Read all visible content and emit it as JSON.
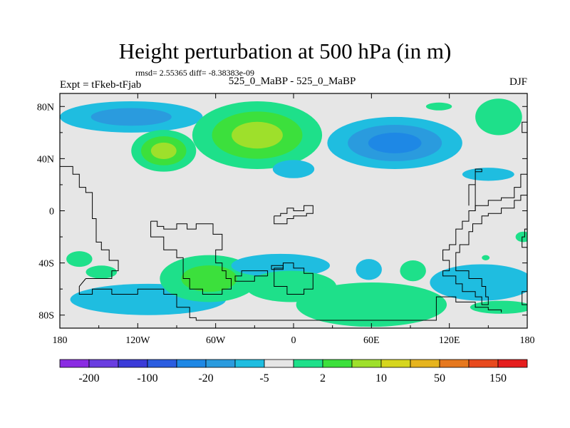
{
  "header": {
    "title": "Height perturbation at 500 hPa (in m)",
    "stats": "rmsd= 2.55365 diff= -8.38383e-09",
    "expt": "Expt = tFkeb-tFjab",
    "center_label": "525_0_MaBP - 525_0_MaBP",
    "season": "DJF"
  },
  "colors": {
    "land_fill": "#e6e6e6",
    "frame": "#000000",
    "coastline": "#000000",
    "contour_palette": [
      "#8a2be2",
      "#6a3de0",
      "#3b3bd8",
      "#2b5de0",
      "#1e88e5",
      "#2a9bde",
      "#1fbde0",
      "#e6e6e6",
      "#1ee08a",
      "#3ce03c",
      "#9ee02b",
      "#d6d61e",
      "#e6b41e",
      "#e6781e",
      "#e84a1e",
      "#e61e1e"
    ]
  },
  "chart_data": {
    "type": "heatmap",
    "title": "Height perturbation at 500 hPa (in m)",
    "projection": "cylindrical equidistant",
    "xlim": [
      -180,
      180
    ],
    "ylim": [
      -90,
      90
    ],
    "x_ticks": [
      -180,
      -120,
      -60,
      0,
      60,
      120,
      180
    ],
    "x_tick_labels": [
      "180",
      "120W",
      "60W",
      "0",
      "60E",
      "120E",
      "180"
    ],
    "y_ticks": [
      80,
      40,
      0,
      -40,
      -80
    ],
    "y_tick_labels": [
      "80N",
      "40N",
      "0",
      "40S",
      "80S"
    ],
    "colorbar": {
      "levels": [
        "-200",
        "",
        "-100",
        "",
        "-20",
        "",
        "-5",
        "",
        "2",
        "",
        "10",
        "",
        "50",
        "",
        "150",
        ""
      ],
      "colors": [
        "#8a2be2",
        "#6a3de0",
        "#3b3bd8",
        "#2b5de0",
        "#1e88e5",
        "#2a9bde",
        "#1fbde0",
        "#e6e6e6",
        "#1ee08a",
        "#3ce03c",
        "#9ee02b",
        "#d6d61e",
        "#e6b41e",
        "#e6781e",
        "#e84a1e",
        "#e61e1e"
      ]
    },
    "anomalies": [
      {
        "lon": -125,
        "lat": 72,
        "rlon": 55,
        "rlat": 12,
        "colors": [
          "#1fbde0",
          "#2a9bde"
        ]
      },
      {
        "lon": -100,
        "lat": 46,
        "rlon": 25,
        "rlat": 16,
        "colors": [
          "#1ee08a",
          "#3ce03c",
          "#9ee02b"
        ]
      },
      {
        "lon": -28,
        "lat": 58,
        "rlon": 50,
        "rlat": 26,
        "colors": [
          "#1ee08a",
          "#3ce03c",
          "#9ee02b"
        ]
      },
      {
        "lon": 0,
        "lat": 32,
        "rlon": 16,
        "rlat": 7,
        "colors": [
          "#1fbde0"
        ]
      },
      {
        "lon": 78,
        "lat": 52,
        "rlon": 52,
        "rlat": 20,
        "colors": [
          "#1fbde0",
          "#2a9bde",
          "#1e88e5"
        ]
      },
      {
        "lon": 150,
        "lat": 28,
        "rlon": 20,
        "rlat": 5,
        "colors": [
          "#1fbde0"
        ]
      },
      {
        "lon": 158,
        "lat": 72,
        "rlon": 18,
        "rlat": 14,
        "colors": [
          "#1ee08a"
        ]
      },
      {
        "lon": 112,
        "lat": 80,
        "rlon": 10,
        "rlat": 3,
        "colors": [
          "#1ee08a"
        ]
      },
      {
        "lon": -165,
        "lat": -37,
        "rlon": 10,
        "rlat": 6,
        "colors": [
          "#1ee08a"
        ]
      },
      {
        "lon": -148,
        "lat": -47,
        "rlon": 12,
        "rlat": 5,
        "colors": [
          "#1ee08a"
        ]
      },
      {
        "lon": -112,
        "lat": -68,
        "rlon": 60,
        "rlat": 12,
        "colors": [
          "#1fbde0"
        ]
      },
      {
        "lon": -65,
        "lat": -52,
        "rlon": 38,
        "rlat": 18,
        "colors": [
          "#1ee08a",
          "#3ce03c"
        ]
      },
      {
        "lon": -10,
        "lat": -42,
        "rlon": 38,
        "rlat": 9,
        "colors": [
          "#1fbde0"
        ]
      },
      {
        "lon": -2,
        "lat": -58,
        "rlon": 35,
        "rlat": 12,
        "colors": [
          "#1ee08a"
        ]
      },
      {
        "lon": 60,
        "lat": -72,
        "rlon": 58,
        "rlat": 17,
        "colors": [
          "#1ee08a"
        ]
      },
      {
        "lon": 58,
        "lat": -45,
        "rlon": 10,
        "rlat": 8,
        "colors": [
          "#1fbde0"
        ]
      },
      {
        "lon": 92,
        "lat": -46,
        "rlon": 10,
        "rlat": 8,
        "colors": [
          "#1ee08a"
        ]
      },
      {
        "lon": 145,
        "lat": -55,
        "rlon": 40,
        "rlat": 14,
        "colors": [
          "#1fbde0"
        ]
      },
      {
        "lon": 160,
        "lat": -74,
        "rlon": 24,
        "rlat": 5,
        "colors": [
          "#1ee08a"
        ]
      },
      {
        "lon": 177,
        "lat": -20,
        "rlon": 6,
        "rlat": 4,
        "colors": [
          "#1ee08a"
        ]
      },
      {
        "lon": 148,
        "lat": -36,
        "rlon": 3,
        "rlat": 2,
        "colors": [
          "#1ee08a"
        ]
      }
    ],
    "coastlines": [
      [
        [
          -180,
          34
        ],
        [
          -170,
          34
        ],
        [
          -170,
          28
        ],
        [
          -165,
          28
        ],
        [
          -165,
          18
        ],
        [
          -160,
          18
        ],
        [
          -160,
          14
        ],
        [
          -155,
          14
        ],
        [
          -155,
          -6
        ],
        [
          -152,
          -6
        ],
        [
          -152,
          -24
        ],
        [
          -148,
          -24
        ],
        [
          -148,
          -30
        ],
        [
          -142,
          -30
        ],
        [
          -142,
          -38
        ],
        [
          -135,
          -38
        ],
        [
          -135,
          -46
        ],
        [
          -140,
          -46
        ],
        [
          -140,
          -52
        ],
        [
          -160,
          -52
        ]
      ],
      [
        [
          -110,
          -8
        ],
        [
          -110,
          -20
        ],
        [
          -100,
          -20
        ],
        [
          -100,
          -30
        ],
        [
          -90,
          -30
        ],
        [
          -90,
          -36
        ],
        [
          -85,
          -36
        ],
        [
          -85,
          -52
        ],
        [
          -80,
          -52
        ],
        [
          -80,
          -60
        ],
        [
          -70,
          -60
        ],
        [
          -70,
          -64
        ],
        [
          -55,
          -64
        ],
        [
          -55,
          -60
        ],
        [
          -48,
          -60
        ],
        [
          -48,
          -52
        ],
        [
          -52,
          -52
        ],
        [
          -52,
          -46
        ],
        [
          -55,
          -46
        ],
        [
          -55,
          -40
        ],
        [
          -60,
          -40
        ],
        [
          -60,
          -30
        ],
        [
          -55,
          -30
        ],
        [
          -55,
          -18
        ],
        [
          -62,
          -18
        ],
        [
          -62,
          -10
        ],
        [
          -75,
          -10
        ],
        [
          -75,
          -14
        ],
        [
          -82,
          -14
        ],
        [
          -82,
          -10
        ],
        [
          -90,
          -10
        ],
        [
          -90,
          -14
        ],
        [
          -100,
          -14
        ],
        [
          -100,
          -12
        ],
        [
          -105,
          -12
        ],
        [
          -105,
          -8
        ],
        [
          -110,
          -8
        ]
      ],
      [
        [
          -15,
          -52
        ],
        [
          -15,
          -44
        ],
        [
          -8,
          -44
        ],
        [
          -8,
          -40
        ],
        [
          0,
          -40
        ],
        [
          0,
          -44
        ],
        [
          8,
          -44
        ],
        [
          8,
          -48
        ],
        [
          15,
          -48
        ],
        [
          15,
          -60
        ],
        [
          8,
          -60
        ],
        [
          8,
          -64
        ],
        [
          -5,
          -64
        ],
        [
          -5,
          -58
        ],
        [
          -15,
          -58
        ],
        [
          -15,
          -52
        ]
      ],
      [
        [
          -20,
          -50
        ],
        [
          -30,
          -50
        ],
        [
          -30,
          -54
        ],
        [
          -45,
          -54
        ],
        [
          -45,
          -50
        ],
        [
          -40,
          -50
        ],
        [
          -40,
          -46
        ],
        [
          -20,
          -46
        ],
        [
          -20,
          -50
        ]
      ],
      [
        [
          -17,
          -45
        ],
        [
          -8,
          -45
        ],
        [
          -8,
          -42
        ],
        [
          -17,
          -42
        ],
        [
          -17,
          -45
        ]
      ],
      [
        [
          -160,
          -52
        ],
        [
          -165,
          -58
        ],
        [
          -165,
          -64
        ],
        [
          -155,
          -64
        ],
        [
          -155,
          -60
        ],
        [
          -140,
          -60
        ],
        [
          -140,
          -64
        ],
        [
          -120,
          -64
        ],
        [
          -120,
          -60
        ],
        [
          -100,
          -60
        ],
        [
          -100,
          -64
        ],
        [
          -90,
          -64
        ],
        [
          -90,
          -74
        ],
        [
          -80,
          -74
        ],
        [
          -80,
          -82
        ],
        [
          -75,
          -82
        ],
        [
          -75,
          -84
        ],
        [
          110,
          -84
        ],
        [
          110,
          -66
        ],
        [
          125,
          -66
        ],
        [
          125,
          -70
        ],
        [
          140,
          -70
        ],
        [
          140,
          -74
        ],
        [
          150,
          -74
        ],
        [
          150,
          -76
        ],
        [
          160,
          -76
        ],
        [
          160,
          -78
        ]
      ],
      [
        [
          -15,
          -4
        ],
        [
          -15,
          -10
        ],
        [
          -5,
          -10
        ],
        [
          -5,
          -6
        ],
        [
          0,
          -6
        ],
        [
          0,
          -4
        ],
        [
          10,
          -4
        ],
        [
          10,
          -2
        ],
        [
          15,
          -2
        ],
        [
          15,
          4
        ],
        [
          8,
          4
        ],
        [
          8,
          0
        ],
        [
          0,
          0
        ],
        [
          0,
          2
        ],
        [
          -5,
          2
        ],
        [
          -5,
          -2
        ],
        [
          -10,
          -2
        ],
        [
          -10,
          -4
        ],
        [
          -15,
          -4
        ]
      ],
      [
        [
          180,
          28
        ],
        [
          175,
          28
        ],
        [
          175,
          18
        ],
        [
          170,
          18
        ],
        [
          170,
          10
        ],
        [
          160,
          10
        ],
        [
          160,
          8
        ],
        [
          150,
          8
        ],
        [
          150,
          4
        ],
        [
          140,
          4
        ],
        [
          140,
          0
        ],
        [
          135,
          0
        ],
        [
          135,
          -8
        ],
        [
          130,
          -8
        ],
        [
          130,
          -14
        ],
        [
          125,
          -14
        ],
        [
          125,
          -26
        ],
        [
          120,
          -26
        ],
        [
          120,
          -30
        ],
        [
          115,
          -30
        ],
        [
          115,
          -38
        ],
        [
          120,
          -38
        ],
        [
          120,
          -46
        ],
        [
          115,
          -46
        ],
        [
          115,
          -50
        ],
        [
          125,
          -50
        ],
        [
          125,
          -56
        ],
        [
          130,
          -56
        ],
        [
          130,
          -62
        ],
        [
          140,
          -62
        ],
        [
          140,
          -66
        ],
        [
          145,
          -66
        ],
        [
          145,
          -72
        ],
        [
          150,
          -72
        ],
        [
          150,
          -66
        ],
        [
          148,
          -66
        ],
        [
          148,
          -58
        ],
        [
          145,
          -58
        ],
        [
          145,
          -52
        ],
        [
          135,
          -52
        ],
        [
          135,
          -46
        ],
        [
          125,
          -46
        ],
        [
          125,
          -40
        ],
        [
          125,
          -32
        ],
        [
          128,
          -32
        ],
        [
          128,
          -26
        ],
        [
          135,
          -26
        ],
        [
          135,
          -16
        ],
        [
          138,
          -16
        ],
        [
          138,
          -10
        ],
        [
          145,
          -10
        ],
        [
          145,
          -4
        ],
        [
          150,
          -4
        ],
        [
          150,
          -2
        ],
        [
          160,
          -2
        ],
        [
          160,
          2
        ],
        [
          170,
          2
        ],
        [
          170,
          8
        ],
        [
          175,
          8
        ],
        [
          175,
          12
        ],
        [
          180,
          12
        ]
      ],
      [
        [
          140,
          0
        ],
        [
          140,
          30
        ],
        [
          145,
          30
        ],
        [
          145,
          32
        ],
        [
          140,
          32
        ],
        [
          140,
          20
        ],
        [
          135,
          20
        ],
        [
          135,
          4
        ]
      ],
      [
        [
          180,
          -14
        ],
        [
          178,
          -14
        ],
        [
          178,
          -20
        ],
        [
          176,
          -20
        ],
        [
          176,
          -28
        ],
        [
          180,
          -28
        ]
      ],
      [
        [
          180,
          -62
        ],
        [
          176,
          -62
        ],
        [
          176,
          -72
        ],
        [
          180,
          -72
        ]
      ],
      [
        [
          180,
          60
        ],
        [
          176,
          60
        ],
        [
          176,
          68
        ],
        [
          180,
          68
        ]
      ]
    ]
  }
}
